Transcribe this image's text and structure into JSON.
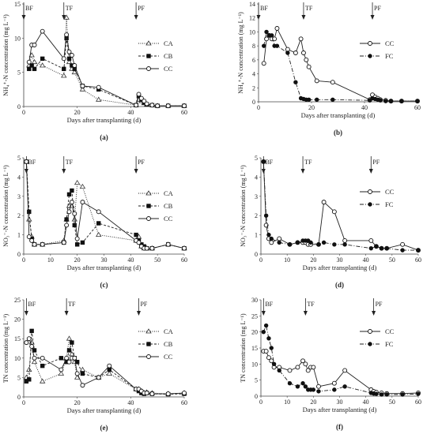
{
  "chart_data": [
    {
      "panel": "(a)",
      "type": "line",
      "ylabel": "NH₄⁺-N concentration (mg L⁻¹)",
      "xlabel": "Days after transplanting (d)",
      "xlim": [
        0,
        60
      ],
      "ylim": [
        0,
        15
      ],
      "xticks": [
        "0",
        "20",
        "40",
        "60"
      ],
      "yticks": [
        "0",
        "5",
        "10",
        "15"
      ],
      "markers": [
        {
          "label": "BF",
          "day": 0
        },
        {
          "label": "TF",
          "day": 15
        },
        {
          "label": "PF",
          "day": 42
        }
      ],
      "series": [
        {
          "name": "CA",
          "style": "dotted",
          "marker": "triangle",
          "x": [
            2,
            3,
            4,
            7,
            15,
            16,
            17,
            18,
            19,
            22,
            28,
            42,
            43,
            44,
            45,
            46,
            48,
            50,
            54,
            60
          ],
          "y": [
            6,
            7.5,
            6.5,
            6,
            4.5,
            13,
            6.5,
            5.5,
            5,
            2.5,
            1,
            0.2,
            1,
            0.8,
            0.5,
            0.3,
            0.2,
            0.1,
            0.1,
            0.1
          ]
        },
        {
          "name": "CB",
          "style": "dashed",
          "marker": "square",
          "x": [
            2,
            3,
            4,
            7,
            15,
            16,
            17,
            18,
            19,
            22,
            28,
            42,
            43,
            44,
            45,
            46,
            48,
            50,
            54,
            60
          ],
          "y": [
            5.5,
            6,
            5.5,
            7,
            5.5,
            10,
            7,
            6,
            5.5,
            3,
            2.5,
            0.2,
            1.5,
            1,
            0.6,
            0.3,
            0.2,
            0.1,
            0.1,
            0.1
          ]
        },
        {
          "name": "CC",
          "style": "solid",
          "marker": "circle",
          "x": [
            2,
            3,
            4,
            7,
            15,
            16,
            17,
            18,
            19,
            22,
            28,
            42,
            43,
            44,
            45,
            46,
            48,
            50,
            54,
            60
          ],
          "y": [
            6.5,
            9,
            9,
            11,
            7,
            10.5,
            8,
            7.5,
            6,
            3,
            2.8,
            0.2,
            1.8,
            1.2,
            0.8,
            0.4,
            0.2,
            0.1,
            0.1,
            0.1
          ]
        }
      ]
    },
    {
      "panel": "(b)",
      "type": "line",
      "ylabel": "NH₄⁺-N concentration (mg L⁻¹)",
      "xlabel": "Days after transplanting (d)",
      "xlim": [
        0,
        60
      ],
      "ylim": [
        0,
        14
      ],
      "xticks": [
        "0",
        "20",
        "40",
        "60"
      ],
      "yticks": [
        "0",
        "2",
        "4",
        "6",
        "8",
        "10",
        "12",
        "14"
      ],
      "markers": [
        {
          "label": "BF",
          "day": 0
        },
        {
          "label": "TF",
          "day": 17
        },
        {
          "label": "PF",
          "day": 43
        }
      ],
      "series": [
        {
          "name": "CC",
          "style": "solid",
          "marker": "circle",
          "x": [
            2,
            3,
            4,
            5,
            6,
            7,
            11,
            14,
            16,
            17,
            18,
            19,
            22,
            28,
            42,
            43,
            44,
            45,
            46,
            48,
            50,
            54,
            60
          ],
          "y": [
            5.5,
            9,
            9.5,
            9,
            9,
            10.5,
            7.5,
            7,
            9,
            7,
            6,
            5,
            3,
            2.8,
            0.3,
            1,
            0.7,
            0.5,
            0.3,
            0.2,
            0.1,
            0.1,
            0.1
          ]
        },
        {
          "name": "FC",
          "style": "dashdot",
          "marker": "filled-circle",
          "x": [
            2,
            3,
            4,
            5,
            6,
            7,
            11,
            14,
            16,
            17,
            18,
            19,
            22,
            28,
            42,
            43,
            44,
            45,
            46,
            48,
            50,
            54,
            60
          ],
          "y": [
            8,
            10,
            9.5,
            9.5,
            8,
            8,
            7,
            2.8,
            0.5,
            0.4,
            0.3,
            0.3,
            0.3,
            0.3,
            0.2,
            0.5,
            0.4,
            0.3,
            0.2,
            0.1,
            0.1,
            0.1,
            0.1
          ]
        }
      ]
    },
    {
      "panel": "(c)",
      "type": "line",
      "ylabel": "NO₃⁻-N concentration (mg L⁻¹)",
      "xlabel": "Days after transplanting (d)",
      "xlim": [
        0,
        60
      ],
      "ylim": [
        0,
        5
      ],
      "xticks": [
        "0",
        "10",
        "20",
        "30",
        "40",
        "50",
        "60"
      ],
      "yticks": [
        "0",
        "1",
        "2",
        "3",
        "4",
        "5"
      ],
      "markers": [
        {
          "label": "BF",
          "day": 1
        },
        {
          "label": "TF",
          "day": 15
        },
        {
          "label": "PF",
          "day": 42
        }
      ],
      "series": [
        {
          "name": "CA",
          "style": "dotted",
          "marker": "triangle",
          "x": [
            1,
            2,
            3,
            4,
            7,
            15,
            16,
            17,
            18,
            19,
            20,
            22,
            28,
            42,
            43,
            44,
            45,
            46,
            48,
            54,
            60
          ],
          "y": [
            4.8,
            1.8,
            0.9,
            0.5,
            0.5,
            0.7,
            1.8,
            2.5,
            2.5,
            1.8,
            3.7,
            3.5,
            1,
            0.7,
            0.9,
            0.4,
            0.3,
            0.3,
            0.3,
            0.5,
            0.3
          ]
        },
        {
          "name": "CB",
          "style": "dashed",
          "marker": "square",
          "x": [
            1,
            2,
            3,
            4,
            7,
            15,
            16,
            17,
            18,
            19,
            20,
            22,
            28,
            42,
            43,
            44,
            45,
            46,
            48,
            54,
            60
          ],
          "y": [
            4.8,
            2.2,
            0.8,
            0.5,
            0.5,
            0.6,
            1.8,
            3.1,
            3.3,
            1.5,
            0.5,
            0.6,
            1.6,
            1,
            0.7,
            0.5,
            0.4,
            0.3,
            0.3,
            0.5,
            0.3
          ]
        },
        {
          "name": "CC",
          "style": "solid",
          "marker": "circle",
          "x": [
            1,
            2,
            3,
            4,
            7,
            15,
            16,
            17,
            18,
            19,
            20,
            22,
            28,
            42,
            43,
            44,
            45,
            46,
            48,
            54,
            60
          ],
          "y": [
            4.8,
            0.9,
            0.7,
            0.5,
            0.5,
            0.6,
            1.5,
            2.2,
            2.7,
            2.1,
            0.8,
            2.7,
            2.2,
            0.7,
            0.6,
            0.4,
            0.3,
            0.3,
            0.3,
            0.5,
            0.3
          ]
        }
      ]
    },
    {
      "panel": "(d)",
      "type": "line",
      "ylabel": "NO₃⁻-N concentration (mg L⁻¹)",
      "xlabel": "Days after transplanting (d)",
      "xlim": [
        0,
        60
      ],
      "ylim": [
        0,
        5
      ],
      "xticks": [
        "0",
        "10",
        "20",
        "30",
        "40",
        "50",
        "60"
      ],
      "yticks": [
        "0",
        "1",
        "2",
        "3",
        "4",
        "5"
      ],
      "markers": [
        {
          "label": "BF",
          "day": 1
        },
        {
          "label": "TF",
          "day": 16
        },
        {
          "label": "PF",
          "day": 42
        }
      ],
      "series": [
        {
          "name": "CC",
          "style": "solid",
          "marker": "circle",
          "x": [
            1,
            2,
            3,
            4,
            7,
            11,
            14,
            16,
            17,
            18,
            19,
            22,
            24,
            28,
            32,
            42,
            44,
            46,
            48,
            54,
            60
          ],
          "y": [
            4.8,
            1.5,
            0.8,
            0.6,
            0.8,
            0.5,
            0.6,
            0.6,
            0.6,
            0.5,
            0.5,
            0.5,
            2.7,
            2.2,
            0.7,
            0.7,
            0.4,
            0.3,
            0.3,
            0.5,
            0.2
          ]
        },
        {
          "name": "FC",
          "style": "dashdot",
          "marker": "filled-circle",
          "x": [
            1,
            2,
            3,
            4,
            7,
            11,
            14,
            16,
            17,
            18,
            19,
            22,
            24,
            28,
            32,
            42,
            44,
            46,
            48,
            54,
            60
          ],
          "y": [
            4.8,
            2,
            1,
            0.8,
            0.6,
            0.5,
            0.6,
            0.7,
            0.7,
            0.7,
            0.6,
            0.5,
            0.6,
            0.5,
            0.5,
            0.3,
            0.4,
            0.3,
            0.3,
            0.2,
            0.2
          ]
        }
      ]
    },
    {
      "panel": "(e)",
      "type": "line",
      "ylabel": "TN concentration (mg L⁻¹)",
      "xlabel": "Days after transplanting (d)",
      "xlim": [
        0,
        60
      ],
      "ylim": [
        0,
        25
      ],
      "xticks": [
        "0",
        "20",
        "40",
        "60"
      ],
      "yticks": [
        "0",
        "5",
        "10",
        "15",
        "20",
        "25"
      ],
      "markers": [
        {
          "label": "BF",
          "day": 1
        },
        {
          "label": "TF",
          "day": 16
        },
        {
          "label": "PF",
          "day": 43
        }
      ],
      "series": [
        {
          "name": "CA",
          "style": "dotted",
          "marker": "triangle",
          "x": [
            1,
            2,
            3,
            4,
            7,
            14,
            16,
            17,
            18,
            19,
            20,
            22,
            28,
            32,
            42,
            43,
            44,
            45,
            46,
            48,
            54,
            60
          ],
          "y": [
            5,
            7,
            14,
            9,
            4,
            6,
            10,
            15,
            11,
            9,
            5,
            7,
            5,
            6,
            2,
            2,
            1.5,
            1,
            1.2,
            1,
            0.8,
            1
          ]
        },
        {
          "name": "CB",
          "style": "dashed",
          "marker": "square",
          "x": [
            1,
            2,
            3,
            4,
            7,
            14,
            16,
            17,
            18,
            19,
            20,
            22,
            28,
            32,
            42,
            43,
            44,
            45,
            46,
            48,
            54,
            60
          ],
          "y": [
            4,
            4.5,
            17,
            12,
            8,
            10,
            9,
            12,
            14,
            10,
            9,
            6,
            5,
            7,
            2,
            1.5,
            1,
            0.8,
            1,
            0.8,
            0.7,
            0.8
          ]
        },
        {
          "name": "CC",
          "style": "solid",
          "marker": "circle",
          "x": [
            1,
            2,
            3,
            4,
            7,
            14,
            16,
            17,
            18,
            19,
            20,
            22,
            28,
            32,
            42,
            43,
            44,
            45,
            46,
            48,
            54,
            60
          ],
          "y": [
            14,
            15,
            13,
            10,
            10,
            7,
            10,
            9,
            10,
            10,
            6,
            3,
            5,
            8,
            2,
            2,
            1.5,
            1,
            1,
            0.8,
            0.8,
            1
          ]
        }
      ]
    },
    {
      "panel": "(f)",
      "type": "line",
      "ylabel": "TN concentration (mg L⁻¹)",
      "xlabel": "Days after transplanting (d)",
      "xlim": [
        0,
        60
      ],
      "ylim": [
        0,
        30
      ],
      "xticks": [
        "0",
        "10",
        "20",
        "30",
        "40",
        "50",
        "60"
      ],
      "yticks": [
        "0",
        "5",
        "10",
        "15",
        "20",
        "25",
        "30"
      ],
      "markers": [
        {
          "label": "BF",
          "day": 1
        },
        {
          "label": "TF",
          "day": 17
        },
        {
          "label": "PF",
          "day": 43
        }
      ],
      "series": [
        {
          "name": "CC",
          "style": "solid",
          "marker": "circle",
          "x": [
            1,
            2,
            3,
            4,
            5,
            7,
            11,
            14,
            16,
            17,
            18,
            19,
            20,
            22,
            28,
            32,
            42,
            43,
            44,
            46,
            48,
            54,
            60
          ],
          "y": [
            14,
            14,
            12,
            11,
            9,
            9,
            8,
            9,
            11,
            10,
            8,
            9,
            9,
            3,
            4,
            8,
            2,
            1.5,
            1.2,
            1,
            0.8,
            0.8,
            1
          ]
        },
        {
          "name": "FC",
          "style": "dashdot",
          "marker": "filled-circle",
          "x": [
            1,
            2,
            3,
            4,
            5,
            7,
            11,
            14,
            16,
            17,
            18,
            19,
            20,
            22,
            28,
            32,
            42,
            43,
            44,
            46,
            48,
            54,
            60
          ],
          "y": [
            20,
            22,
            18,
            15,
            10,
            8,
            4,
            3,
            4,
            3,
            2,
            2,
            2,
            1.5,
            2,
            3,
            1,
            0.8,
            0.7,
            0.5,
            0.5,
            0.5,
            0.7
          ]
        }
      ]
    }
  ]
}
